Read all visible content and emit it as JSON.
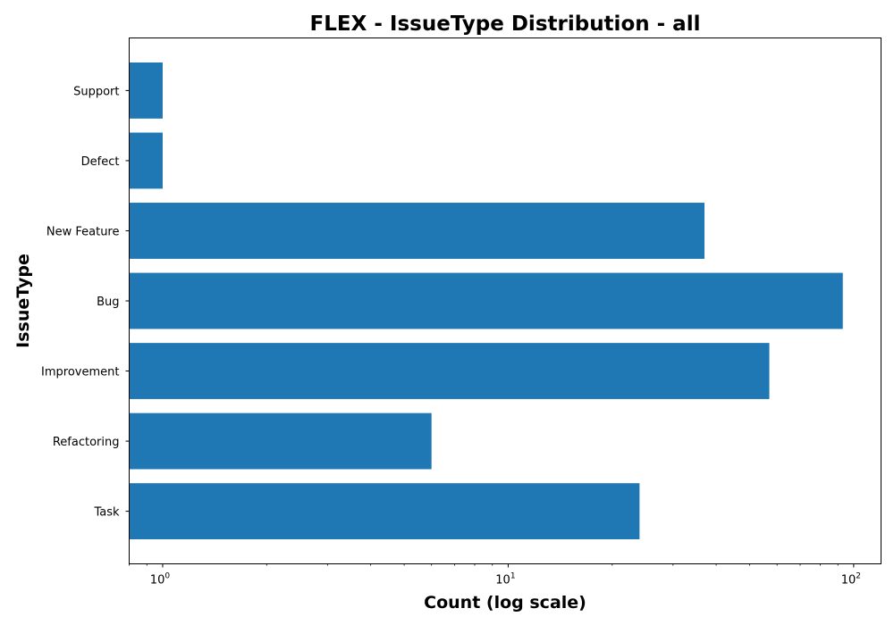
{
  "chart_data": {
    "type": "bar",
    "orientation": "horizontal",
    "title": "FLEX - IssueType Distribution - all",
    "xlabel": "Count (log scale)",
    "ylabel": "IssueType",
    "x_scale": "log",
    "xlim": [
      0.8,
      120
    ],
    "x_ticks": [
      {
        "value": 1,
        "base": "10",
        "exp": "0"
      },
      {
        "value": 10,
        "base": "10",
        "exp": "1"
      },
      {
        "value": 100,
        "base": "10",
        "exp": "2"
      }
    ],
    "categories": [
      "Task",
      "Refactoring",
      "Improvement",
      "Bug",
      "New Feature",
      "Defect",
      "Support"
    ],
    "values": [
      24,
      6,
      57,
      93,
      37,
      1,
      1
    ],
    "grid": false,
    "legend": "none",
    "bar_color": "#1f77b4"
  }
}
